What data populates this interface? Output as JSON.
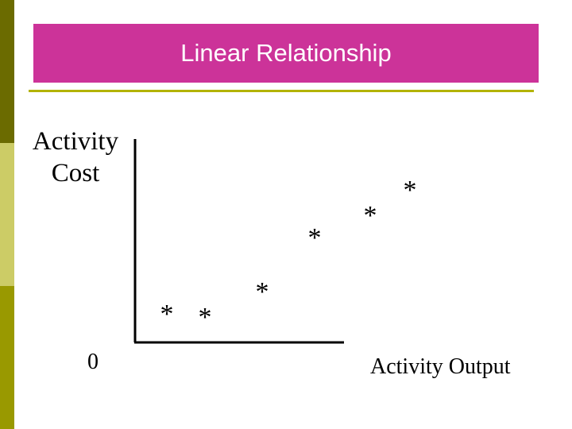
{
  "title": "Linear Relationship",
  "y_axis_label": [
    "Activity",
    "Cost"
  ],
  "origin_label": "0",
  "x_axis_label": "Activity Output",
  "marker_glyph": "*",
  "colors": {
    "title_bg": "#cc3399",
    "title_text": "#ffffff",
    "rule": "#b3b300",
    "stripe_dark": "#6b6b00",
    "stripe_light": "#cccc66",
    "stripe_mid": "#999900"
  },
  "points": [
    {
      "label": "*"
    },
    {
      "label": "*"
    },
    {
      "label": "*"
    },
    {
      "label": "*"
    },
    {
      "label": "*"
    },
    {
      "label": "*"
    }
  ]
}
